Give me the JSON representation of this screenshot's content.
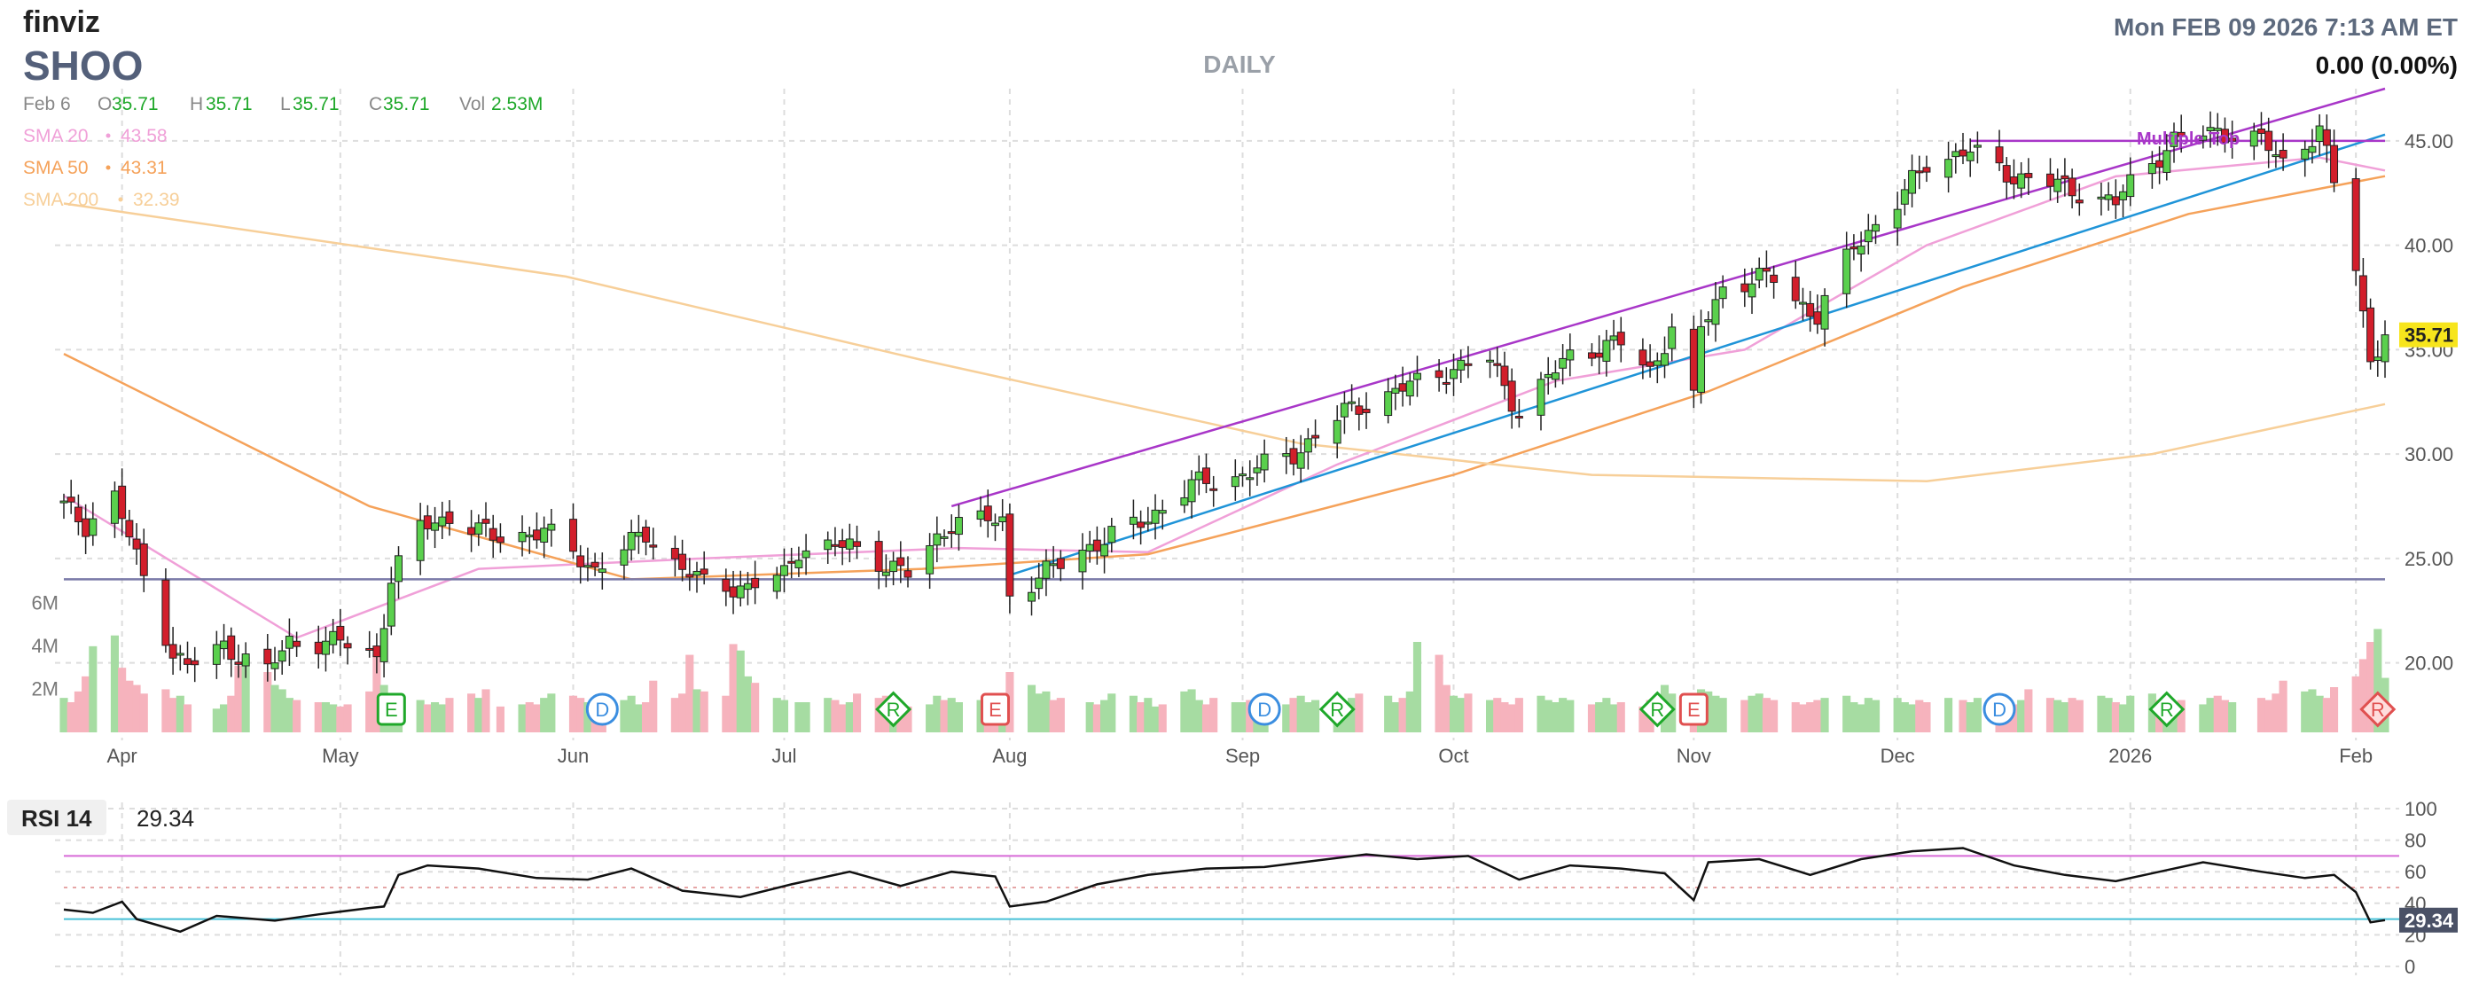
{
  "header": {
    "logo": "finviz",
    "ticker": "SHOO",
    "timeframe": "DAILY",
    "datetime": "Mon FEB 09 2026 7:13 AM ET",
    "change": "0.00 (0.00%)"
  },
  "ohlc": {
    "date": "Feb 6",
    "o_label": "O",
    "o": "35.71",
    "h_label": "H",
    "h": "35.71",
    "l_label": "L",
    "l": "35.71",
    "c_label": "C",
    "c": "35.71",
    "vol_label": "Vol",
    "vol": "2.53M"
  },
  "indicators": [
    {
      "label": "SMA 20",
      "value": "43.58",
      "color": "#f0a0d8"
    },
    {
      "label": "SMA 50",
      "value": "43.31",
      "color": "#f5a25a"
    },
    {
      "label": "SMA 200",
      "value": "32.39",
      "color": "#f7cf99"
    }
  ],
  "colors": {
    "up": "#1fa82a",
    "down": "#d21e2b",
    "up_fill": "#5ad04d",
    "vol_up": "#a6dca2",
    "vol_down": "#f6b3bd",
    "channel": "#a836c8",
    "trend": "#1f94d8",
    "support": "#7a7aa8",
    "rsi_line": "#111111",
    "rsi_upper": "#d86ad8",
    "rsi_lower": "#47c0d8",
    "last_price_bg": "#f7e51c",
    "event_green": "#1fa82a",
    "event_red": "#e05050",
    "event_blue": "#3b8ee0"
  },
  "chart_data": [
    {
      "type": "candlestick",
      "title": "SHOO",
      "subtitle": "DAILY",
      "x_ticks": [
        "Apr",
        "May",
        "Jun",
        "Jul",
        "Aug",
        "Sep",
        "Oct",
        "Nov",
        "Dec",
        "2026",
        "Feb"
      ],
      "y_ticks": [
        "20.00",
        "25.00",
        "30.00",
        "35.00",
        "40.00",
        "45.00"
      ],
      "ylim": [
        16.5,
        47.5
      ],
      "last_price_label": "35.71",
      "annotation": "Multiple Top",
      "grid": true,
      "price_points": [
        [
          "Mar 24",
          27.5
        ],
        [
          "Mar 27",
          26.6
        ],
        [
          "Mar 31",
          28.0
        ],
        [
          "Apr 3",
          25.0
        ],
        [
          "Apr 8",
          20.5
        ],
        [
          "Apr 10",
          19.8
        ],
        [
          "Apr 15",
          20.8
        ],
        [
          "Apr 21",
          19.6
        ],
        [
          "Apr 24",
          21.0
        ],
        [
          "May 1",
          21.0
        ],
        [
          "May 6",
          20.3
        ],
        [
          "May 8",
          24.0
        ],
        [
          "May 12",
          26.5
        ],
        [
          "May 16",
          27.0
        ],
        [
          "May 22",
          26.0
        ],
        [
          "May 29",
          26.3
        ],
        [
          "Jun 5",
          24.5
        ],
        [
          "Jun 12",
          26.2
        ],
        [
          "Jun 17",
          24.5
        ],
        [
          "Jun 20",
          23.8
        ],
        [
          "Jun 26",
          23.6
        ],
        [
          "Jul 1",
          24.2
        ],
        [
          "Jul 3",
          25.5
        ],
        [
          "Jul 10",
          25.6
        ],
        [
          "Jul 18",
          24.2
        ],
        [
          "Jul 24",
          26.8
        ],
        [
          "Jul 31",
          26.8
        ],
        [
          "Aug 1",
          23.3
        ],
        [
          "Aug 4",
          23.9
        ],
        [
          "Aug 12",
          25.6
        ],
        [
          "Aug 19",
          26.7
        ],
        [
          "Aug 26",
          28.5
        ],
        [
          "Sep 2",
          29.0
        ],
        [
          "Sep 9",
          30.0
        ],
        [
          "Sep 16",
          32.0
        ],
        [
          "Sep 23",
          33.0
        ],
        [
          "Sep 30",
          34.0
        ],
        [
          "Oct 6",
          34.5
        ],
        [
          "Oct 10",
          32.0
        ],
        [
          "Oct 17",
          34.8
        ],
        [
          "Oct 24",
          35.3
        ],
        [
          "Oct 28",
          34.0
        ],
        [
          "Oct 31",
          36.0
        ],
        [
          "Nov 3",
          32.5
        ],
        [
          "Nov 4",
          36.0
        ],
        [
          "Nov 7",
          38.0
        ],
        [
          "Nov 14",
          38.5
        ],
        [
          "Nov 20",
          36.5
        ],
        [
          "Nov 25",
          40.0
        ],
        [
          "Dec 1",
          42.0
        ],
        [
          "Dec 5",
          44.0
        ],
        [
          "Dec 11",
          44.5
        ],
        [
          "Dec 17",
          43.3
        ],
        [
          "Dec 24",
          42.8
        ],
        [
          "Dec 31",
          42.0
        ],
        [
          "Jan 2",
          43.0
        ],
        [
          "Jan 8",
          45.0
        ],
        [
          "Jan 14",
          45.5
        ],
        [
          "Jan 20",
          45.0
        ],
        [
          "Jan 23",
          44.0
        ],
        [
          "Jan 28",
          45.5
        ],
        [
          "Jan 30",
          43.0
        ],
        [
          "Feb 2",
          39.0
        ],
        [
          "Feb 4",
          34.5
        ],
        [
          "Feb 6",
          35.71
        ]
      ],
      "sma_points": {
        "SMA 20": [
          [
            "Mar 24",
            28.0
          ],
          [
            "Apr 25",
            21.2
          ],
          [
            "May 20",
            24.5
          ],
          [
            "Jun 20",
            25.0
          ],
          [
            "Jul 25",
            25.5
          ],
          [
            "Aug 20",
            25.3
          ],
          [
            "Sep 15",
            29.5
          ],
          [
            "Oct 15",
            33.5
          ],
          [
            "Nov 10",
            35.0
          ],
          [
            "Dec 5",
            40.0
          ],
          [
            "Dec 31",
            43.3
          ],
          [
            "Jan 28",
            44.2
          ],
          [
            "Feb 6",
            43.58
          ]
        ],
        "SMA 50": [
          [
            "Mar 24",
            34.8
          ],
          [
            "May 5",
            27.5
          ],
          [
            "Jun 10",
            24.0
          ],
          [
            "Jul 20",
            24.5
          ],
          [
            "Aug 20",
            25.2
          ],
          [
            "Oct 1",
            29.0
          ],
          [
            "Nov 5",
            33.0
          ],
          [
            "Dec 10",
            38.0
          ],
          [
            "Jan 10",
            41.5
          ],
          [
            "Feb 6",
            43.31
          ]
        ],
        "SMA 200": [
          [
            "Mar 24",
            42.0
          ],
          [
            "Jun 1",
            38.5
          ],
          [
            "Jul 20",
            34.5
          ],
          [
            "Sep 10",
            30.5
          ],
          [
            "Oct 20",
            29.0
          ],
          [
            "Dec 5",
            28.7
          ],
          [
            "Jan 5",
            30.0
          ],
          [
            "Feb 6",
            32.39
          ]
        ]
      },
      "trendlines": [
        {
          "kind": "channel-upper",
          "from": [
            "Jul 24",
            27.5
          ],
          "to": [
            "Feb 6",
            47.5
          ]
        },
        {
          "kind": "channel-lower",
          "from": [
            "Aug 1",
            24.2
          ],
          "to": [
            "Feb 6",
            45.3
          ]
        },
        {
          "kind": "resistance",
          "from": [
            "Dec 11",
            45.0
          ],
          "to": [
            "Feb 6",
            45.0
          ]
        },
        {
          "kind": "support",
          "from": [
            "Mar 24",
            24.0
          ],
          "to": [
            "Feb 6",
            24.0
          ]
        }
      ]
    },
    {
      "type": "bar",
      "title": "Volume",
      "y_ticks": [
        "2M",
        "4M",
        "6M"
      ],
      "ylim": [
        0,
        7
      ],
      "unit": "M",
      "values": [
        1.6,
        1.4,
        1.9,
        2.6,
        4.0,
        4.5,
        3.0,
        2.4,
        2.2,
        1.8,
        2.0,
        1.6,
        1.7,
        1.3,
        1.1,
        1.3,
        1.7,
        3.1,
        3.5,
        2.8,
        2.2,
        2.0,
        1.6,
        1.5,
        1.4,
        1.4,
        1.3,
        1.2,
        1.3,
        1.9,
        3.6,
        2.2,
        1.7,
        1.6,
        1.5,
        1.3,
        1.4,
        1.3,
        1.6,
        1.8,
        1.6,
        2.0,
        1.2,
        1.3,
        1.4,
        1.3,
        1.6,
        1.8,
        1.7,
        1.6,
        1.4,
        1.3,
        1.3,
        1.5,
        1.7,
        1.3,
        1.4,
        2.4,
        1.6,
        1.8,
        3.6,
        2.0,
        1.9,
        1.7,
        4.1,
        3.8,
        2.6,
        2.3,
        1.6,
        1.5,
        1.4,
        1.4,
        1.6,
        1.5,
        1.3,
        1.4,
        1.8,
        1.6,
        1.7,
        1.3,
        1.4,
        1.2,
        1.3,
        1.7,
        1.5,
        1.6,
        1.4,
        1.5,
        1.7,
        1.6,
        1.4,
        2.8,
        2.2,
        1.8,
        1.9,
        1.5,
        1.6,
        1.4,
        1.3,
        1.5,
        1.8,
        1.7,
        1.4,
        1.6,
        1.2,
        1.3,
        1.9,
        2.0,
        1.5,
        1.3,
        1.6,
        1.4,
        1.4,
        1.5,
        1.6,
        1.4,
        1.3,
        1.6,
        1.7,
        1.4,
        1.5,
        1.3,
        1.4,
        1.6,
        1.8,
        1.7,
        1.4,
        1.6,
        1.9,
        4.2,
        3.6,
        2.2,
        1.7,
        1.6,
        1.8,
        1.5,
        1.6,
        1.4,
        1.3,
        1.6,
        1.7,
        1.5,
        1.4,
        1.6,
        1.5,
        1.3,
        1.4,
        1.6,
        1.3,
        1.4,
        1.2,
        1.5,
        2.2,
        1.8,
        1.6,
        2.0,
        1.9,
        1.7,
        1.6,
        1.5,
        1.7,
        1.8,
        1.6,
        1.5,
        1.4,
        1.3,
        1.4,
        1.5,
        1.6,
        1.7,
        1.4,
        1.3,
        1.6,
        1.5,
        1.6,
        1.4,
        1.3,
        1.5,
        1.4,
        1.6,
        1.5,
        1.4,
        1.6,
        1.5,
        1.4,
        1.3,
        1.5,
        2.0,
        1.6,
        1.5,
        1.4,
        1.6,
        1.5,
        1.7,
        1.6,
        1.4,
        1.3,
        1.7,
        1.8,
        1.5,
        1.6,
        1.4,
        1.5,
        1.3,
        1.6,
        1.7,
        1.5,
        1.4,
        1.6,
        1.5,
        1.8,
        2.4,
        1.9,
        2.0,
        1.7,
        1.6,
        2.1,
        2.6,
        3.4,
        4.2,
        4.8,
        2.53
      ],
      "events": [
        {
          "date": "May 8",
          "code": "E",
          "kind": "earnings"
        },
        {
          "date": "Jun 6",
          "code": "D",
          "kind": "dividend"
        },
        {
          "date": "Jul 16",
          "code": "R",
          "kind": "rating"
        },
        {
          "date": "Jul 30",
          "code": "E",
          "kind": "earnings"
        },
        {
          "date": "Sep 5",
          "code": "D",
          "kind": "dividend"
        },
        {
          "date": "Sep 15",
          "code": "R",
          "kind": "rating"
        },
        {
          "date": "Oct 29",
          "code": "R",
          "kind": "rating"
        },
        {
          "date": "Nov 3",
          "code": "E",
          "kind": "earnings"
        },
        {
          "date": "Dec 15",
          "code": "D",
          "kind": "dividend"
        },
        {
          "date": "Jan 7",
          "code": "R",
          "kind": "rating"
        },
        {
          "date": "Feb 5",
          "code": "R",
          "kind": "rating"
        }
      ]
    },
    {
      "type": "line",
      "title": "RSI 14",
      "value_label": "29.34",
      "last_label": "29.34",
      "y_ticks": [
        "0",
        "20",
        "40",
        "60",
        "80",
        "100"
      ],
      "ylim": [
        0,
        100
      ],
      "upper": 70,
      "lower": 30,
      "points": [
        [
          "Mar 24",
          36
        ],
        [
          "Mar 28",
          34
        ],
        [
          "Apr 1",
          41
        ],
        [
          "Apr 3",
          30
        ],
        [
          "Apr 9",
          22
        ],
        [
          "Apr 14",
          32
        ],
        [
          "Apr 22",
          29
        ],
        [
          "Apr 28",
          33
        ],
        [
          "May 5",
          37
        ],
        [
          "May 7",
          38
        ],
        [
          "May 9",
          58
        ],
        [
          "May 13",
          64
        ],
        [
          "May 20",
          62
        ],
        [
          "May 28",
          56
        ],
        [
          "Jun 4",
          55
        ],
        [
          "Jun 10",
          62
        ],
        [
          "Jun 17",
          48
        ],
        [
          "Jun 25",
          44
        ],
        [
          "Jul 2",
          52
        ],
        [
          "Jul 10",
          60
        ],
        [
          "Jul 17",
          51
        ],
        [
          "Jul 24",
          60
        ],
        [
          "Jul 30",
          57
        ],
        [
          "Aug 1",
          38
        ],
        [
          "Aug 6",
          41
        ],
        [
          "Aug 13",
          52
        ],
        [
          "Aug 20",
          58
        ],
        [
          "Aug 28",
          62
        ],
        [
          "Sep 5",
          63
        ],
        [
          "Sep 12",
          67
        ],
        [
          "Sep 19",
          71
        ],
        [
          "Sep 26",
          68
        ],
        [
          "Oct 3",
          70
        ],
        [
          "Oct 10",
          55
        ],
        [
          "Oct 17",
          64
        ],
        [
          "Oct 24",
          62
        ],
        [
          "Oct 30",
          59
        ],
        [
          "Nov 3",
          42
        ],
        [
          "Nov 5",
          66
        ],
        [
          "Nov 12",
          68
        ],
        [
          "Nov 19",
          58
        ],
        [
          "Nov 26",
          68
        ],
        [
          "Dec 3",
          73
        ],
        [
          "Dec 10",
          75
        ],
        [
          "Dec 17",
          64
        ],
        [
          "Dec 24",
          58
        ],
        [
          "Dec 31",
          54
        ],
        [
          "Jan 6",
          60
        ],
        [
          "Jan 12",
          66
        ],
        [
          "Jan 20",
          60
        ],
        [
          "Jan 26",
          56
        ],
        [
          "Jan 30",
          58
        ],
        [
          "Feb 2",
          47
        ],
        [
          "Feb 4",
          28
        ],
        [
          "Feb 6",
          29.34
        ]
      ]
    }
  ]
}
